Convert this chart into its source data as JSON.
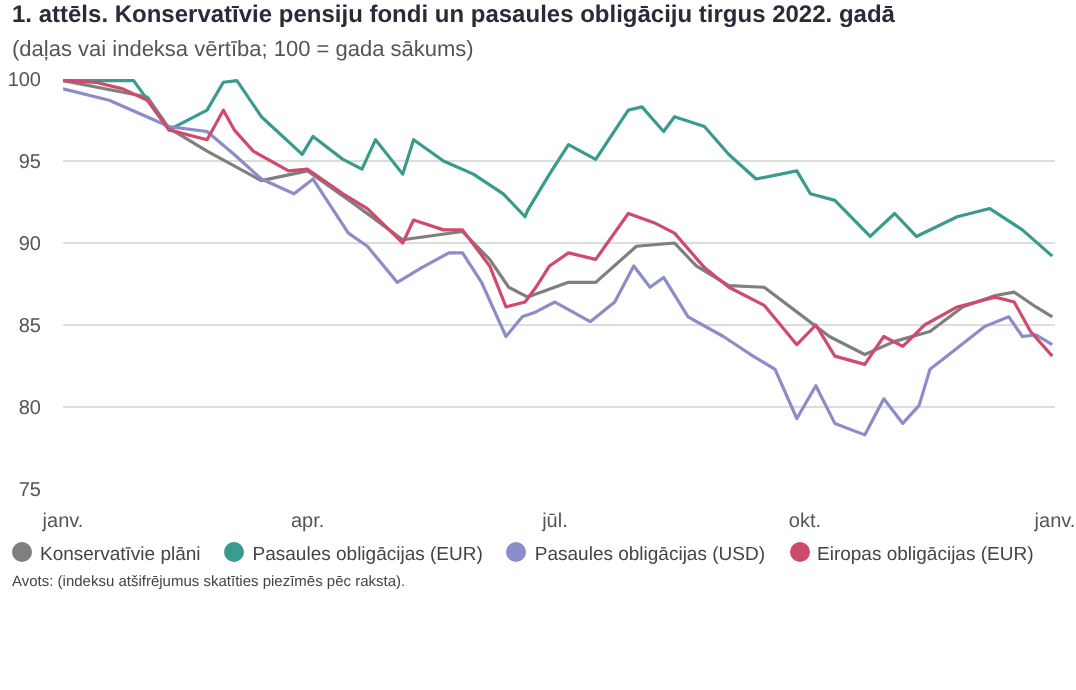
{
  "chart_data": {
    "type": "line",
    "title": "1. attēls. Konservatīvie pensiju fondi un pasaules obligāciju tirgus 2022. gadā",
    "subtitle": "(daļas vai indeksa vērtība; 100 = gada sākums)",
    "annotations": [
      "Avots: (indeksu atšifrējumus skatīties piezīmēs pēc raksta)."
    ],
    "xlim": [
      "2022-01-01",
      "2023-01-01"
    ],
    "xticks": [
      {
        "value": "2022-01-01",
        "label": "janv."
      },
      {
        "value": "2022-04-01",
        "label": "apr."
      },
      {
        "value": "2022-07-01",
        "label": "jūl."
      },
      {
        "value": "2022-10-01",
        "label": "okt."
      },
      {
        "value": "2023-01-01",
        "label": "janv."
      }
    ],
    "ylim": [
      75,
      100
    ],
    "yticks": [
      75,
      80,
      85,
      90,
      95,
      100
    ],
    "grid": "y",
    "legend": "bottom",
    "marker": "none",
    "line_style": "solid",
    "series": [
      {
        "name": "Konservatīvie plāni",
        "color": "#7f7f7f",
        "x": [
          "2022-01-01",
          "2022-02-01",
          "2022-02-09",
          "2022-02-23",
          "2022-03-15",
          "2022-04-01",
          "2022-04-18",
          "2022-05-06",
          "2022-05-28",
          "2022-06-07",
          "2022-06-14",
          "2022-06-21",
          "2022-07-06",
          "2022-07-16",
          "2022-07-31",
          "2022-08-14",
          "2022-08-22",
          "2022-09-03",
          "2022-09-16",
          "2022-09-28",
          "2022-10-10",
          "2022-10-23",
          "2022-11-03",
          "2022-11-16",
          "2022-11-28",
          "2022-12-10",
          "2022-12-17",
          "2022-12-25",
          "2022-12-31"
        ],
        "values": [
          99.9,
          98.9,
          97.0,
          95.6,
          93.8,
          94.4,
          92.4,
          90.2,
          90.7,
          89.0,
          87.3,
          86.7,
          87.6,
          87.6,
          89.8,
          90.0,
          88.6,
          87.4,
          87.3,
          85.8,
          84.3,
          83.2,
          84.0,
          84.6,
          86.1,
          86.8,
          87.0,
          86.1,
          85.5
        ]
      },
      {
        "name": "Pasaules obligācijas (EUR)",
        "color": "#3a9a8e",
        "x": [
          "2022-01-01",
          "2022-01-27",
          "2022-02-09",
          "2022-02-23",
          "2022-03-01",
          "2022-03-06",
          "2022-03-15",
          "2022-03-30",
          "2022-04-03",
          "2022-04-14",
          "2022-04-21",
          "2022-04-26",
          "2022-05-06",
          "2022-05-10",
          "2022-05-21",
          "2022-06-01",
          "2022-06-12",
          "2022-06-20",
          "2022-06-21",
          "2022-06-29",
          "2022-07-06",
          "2022-07-16",
          "2022-07-28",
          "2022-08-02",
          "2022-08-10",
          "2022-08-14",
          "2022-08-25",
          "2022-09-03",
          "2022-09-13",
          "2022-09-28",
          "2022-10-03",
          "2022-10-12",
          "2022-10-25",
          "2022-11-03",
          "2022-11-11",
          "2022-11-26",
          "2022-12-08",
          "2022-12-20",
          "2022-12-31"
        ],
        "values": [
          99.9,
          99.9,
          96.9,
          98.1,
          99.8,
          99.9,
          97.7,
          95.4,
          96.5,
          95.1,
          94.5,
          96.3,
          94.2,
          96.3,
          95.0,
          94.2,
          93.0,
          91.6,
          92.0,
          94.2,
          96.0,
          95.1,
          98.1,
          98.3,
          96.8,
          97.7,
          97.1,
          95.4,
          93.9,
          94.4,
          93.0,
          92.6,
          90.4,
          91.8,
          90.4,
          91.6,
          92.1,
          90.8,
          89.2
        ]
      },
      {
        "name": "Pasaules obligācijas (USD)",
        "color": "#8c8cc8",
        "x": [
          "2022-01-01",
          "2022-01-18",
          "2022-02-09",
          "2022-02-23",
          "2022-03-05",
          "2022-03-15",
          "2022-03-27",
          "2022-04-03",
          "2022-04-16",
          "2022-04-23",
          "2022-05-04",
          "2022-05-13",
          "2022-05-23",
          "2022-05-28",
          "2022-06-04",
          "2022-06-13",
          "2022-06-19",
          "2022-06-24",
          "2022-07-01",
          "2022-07-14",
          "2022-07-23",
          "2022-07-30",
          "2022-08-05",
          "2022-08-10",
          "2022-08-19",
          "2022-09-01",
          "2022-09-11",
          "2022-09-20",
          "2022-09-28",
          "2022-10-05",
          "2022-10-12",
          "2022-10-23",
          "2022-10-30",
          "2022-11-06",
          "2022-11-12",
          "2022-11-16",
          "2022-11-23",
          "2022-12-06",
          "2022-12-15",
          "2022-12-20",
          "2022-12-25",
          "2022-12-31"
        ],
        "values": [
          99.4,
          98.7,
          97.1,
          96.8,
          95.4,
          93.9,
          93.0,
          93.9,
          90.6,
          89.8,
          87.6,
          88.5,
          89.4,
          89.4,
          87.6,
          84.3,
          85.5,
          85.8,
          86.4,
          85.2,
          86.4,
          88.6,
          87.3,
          87.9,
          85.5,
          84.3,
          83.2,
          82.3,
          79.3,
          81.3,
          79.0,
          78.3,
          80.5,
          79.0,
          80.1,
          82.3,
          83.2,
          84.9,
          85.5,
          84.3,
          84.4,
          83.8
        ]
      },
      {
        "name": "Eiropas obligācijas (EUR)",
        "color": "#d04a6b",
        "x": [
          "2022-01-01",
          "2022-01-13",
          "2022-01-23",
          "2022-02-01",
          "2022-02-09",
          "2022-02-23",
          "2022-03-01",
          "2022-03-05",
          "2022-03-12",
          "2022-03-25",
          "2022-04-01",
          "2022-04-14",
          "2022-04-23",
          "2022-05-06",
          "2022-05-10",
          "2022-05-21",
          "2022-05-28",
          "2022-06-07",
          "2022-06-13",
          "2022-06-20",
          "2022-06-24",
          "2022-06-29",
          "2022-07-06",
          "2022-07-16",
          "2022-07-28",
          "2022-08-07",
          "2022-08-14",
          "2022-08-25",
          "2022-09-03",
          "2022-09-16",
          "2022-09-28",
          "2022-10-05",
          "2022-10-12",
          "2022-10-23",
          "2022-10-30",
          "2022-11-06",
          "2022-11-14",
          "2022-11-26",
          "2022-12-10",
          "2022-12-17",
          "2022-12-23",
          "2022-12-31"
        ],
        "values": [
          99.9,
          99.8,
          99.4,
          98.7,
          96.9,
          96.3,
          98.1,
          96.9,
          95.6,
          94.4,
          94.5,
          93.0,
          92.1,
          90.0,
          91.4,
          90.8,
          90.8,
          88.6,
          86.1,
          86.4,
          87.3,
          88.6,
          89.4,
          89.0,
          91.8,
          91.2,
          90.6,
          88.5,
          87.3,
          86.2,
          83.8,
          85.0,
          83.1,
          82.6,
          84.3,
          83.7,
          85.0,
          86.1,
          86.7,
          86.4,
          84.6,
          83.1
        ]
      }
    ]
  }
}
